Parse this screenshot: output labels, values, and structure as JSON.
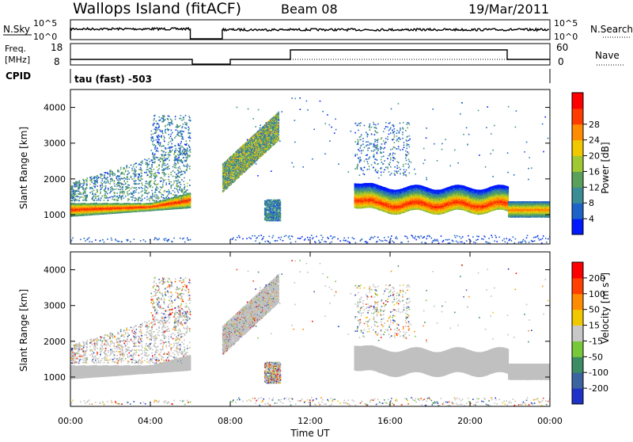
{
  "header": {
    "station": "Wallops Island (fitACF)",
    "beam": "Beam 08",
    "date": "19/Mar/2011"
  },
  "summary_panels": {
    "nsky_label": "N.Sky",
    "nsky_ticks": [
      "10^5",
      "10^0"
    ],
    "nsearch_label": "N.Search",
    "nsearch_ticks": [
      "10^5",
      "10^0"
    ],
    "freq_label": "Freq.",
    "freq_unit": "[MHz]",
    "freq_ticks": [
      "18",
      "8"
    ],
    "nave_label": "Nave",
    "nave_ticks": [
      "60",
      "0"
    ],
    "cpid_label": "CPID",
    "cpid_text": "tau (fast) -503"
  },
  "chart_data": [
    {
      "type": "heatmap",
      "panel": "power",
      "xlabel": "",
      "ylabel": "Slant Range [km]",
      "x_range_hours": [
        0,
        24
      ],
      "ylim": [
        180,
        4500
      ],
      "y_ticks": [
        "1000",
        "2000",
        "3000",
        "4000"
      ],
      "colorbar": {
        "label": "Power [dB]",
        "ticks": [
          "4",
          "8",
          "12",
          "16",
          "20",
          "24",
          "28"
        ],
        "colors": [
          "#0019ff",
          "#1e64c8",
          "#3c8c96",
          "#5aa05a",
          "#a0c832",
          "#f0c800",
          "#ff8c00",
          "#ff3c00",
          "#ff0000"
        ]
      },
      "data_gaps_hours": [
        [
          6.0,
          7.6
        ]
      ],
      "bands": [
        {
          "name": "main",
          "start_h": 0.0,
          "end_h": 6.0,
          "range_km": [
            950,
            1400
          ],
          "peak_db": 28
        },
        {
          "name": "high",
          "start_h": 7.6,
          "end_h": 10.4,
          "range_km": [
            1800,
            3600
          ],
          "peak_db": 20
        },
        {
          "name": "main",
          "start_h": 14.2,
          "end_h": 21.9,
          "range_km": [
            1300,
            2100
          ],
          "peak_db": 28
        },
        {
          "name": "main",
          "start_h": 21.9,
          "end_h": 24.0,
          "range_km": [
            950,
            1350
          ],
          "peak_db": 24
        }
      ]
    },
    {
      "type": "heatmap",
      "panel": "velocity",
      "xlabel": "Time UT",
      "ylabel": "Slant Range [km]",
      "x_range_hours": [
        0,
        24
      ],
      "x_ticks": [
        "00:00",
        "04:00",
        "08:00",
        "12:00",
        "16:00",
        "20:00",
        "00:00"
      ],
      "ylim": [
        180,
        4500
      ],
      "y_ticks": [
        "1000",
        "2000",
        "3000",
        "4000"
      ],
      "colorbar": {
        "label": "Velocity [m s^-1]",
        "ticks": [
          "200",
          "100",
          "50",
          "15",
          "-15",
          "-50",
          "-100",
          "-200"
        ],
        "colors": [
          "#1e32c8",
          "#3c64a0",
          "#3c8c64",
          "#78c83c",
          "#c8c8c8",
          "#f0c800",
          "#ff8c00",
          "#ff4000",
          "#ff0000"
        ]
      },
      "ground_scatter_color": "#c0c0c0"
    }
  ]
}
